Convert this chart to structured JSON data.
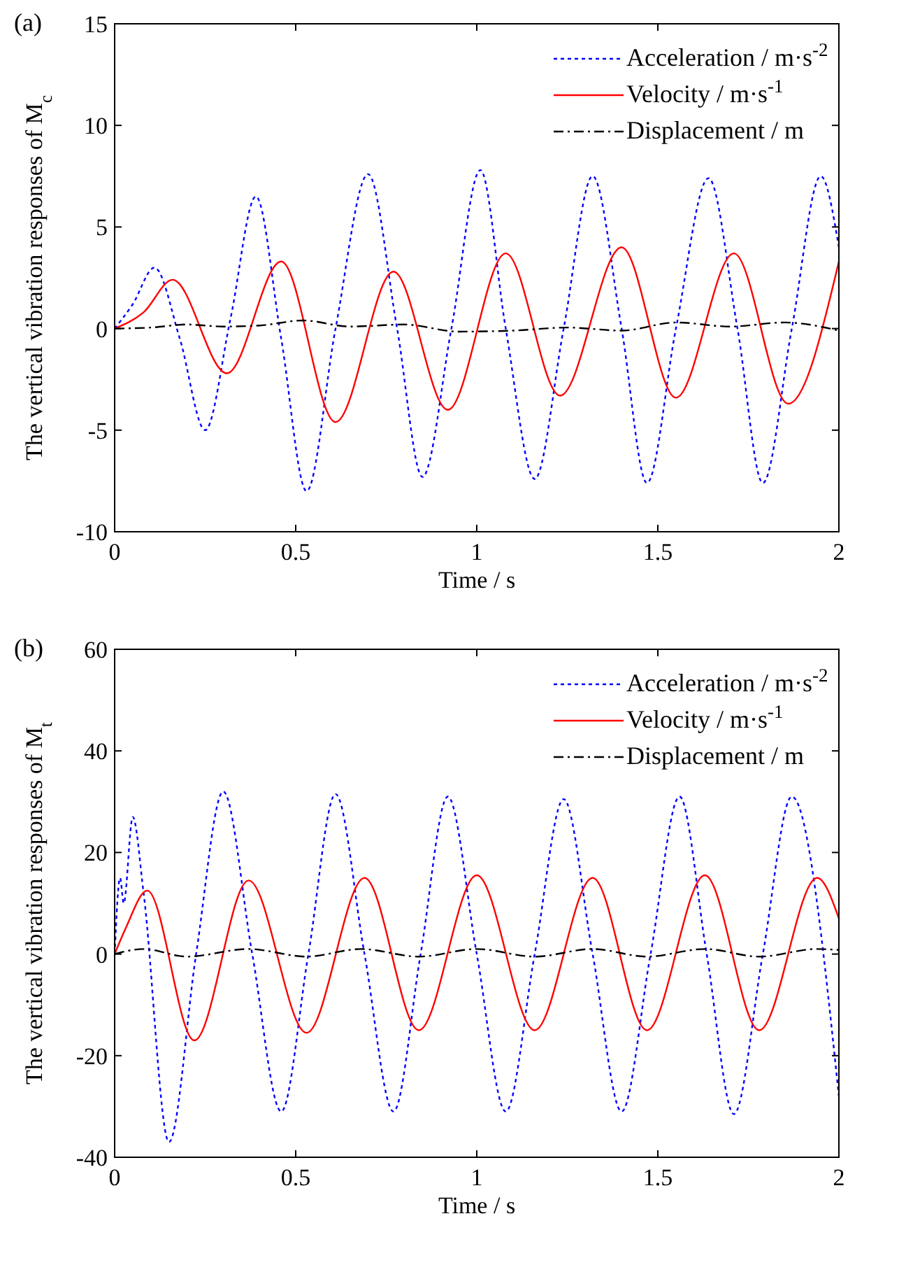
{
  "chart_data": [
    {
      "type": "line",
      "title": "(a)",
      "xlabel": "Time / s",
      "ylabel": "The vertical vibration responses of M$_{c}$",
      "xlim": [
        0,
        2
      ],
      "ylim": [
        -10,
        15
      ],
      "xticks": [
        0,
        0.5,
        1,
        1.5,
        2
      ],
      "yticks": [
        -10,
        -5,
        0,
        5,
        10,
        15
      ],
      "legend": "top right",
      "grid": false,
      "series": [
        {
          "name": "Acceleration / m·s$^{-2}$",
          "color": "#0000ff",
          "line_style": "dotted",
          "x": [
            0,
            0.05,
            0.11,
            0.18,
            0.25,
            0.32,
            0.39,
            0.46,
            0.53,
            0.61,
            0.7,
            0.78,
            0.85,
            0.93,
            1.01,
            1.08,
            1.16,
            1.24,
            1.32,
            1.4,
            1.47,
            1.55,
            1.64,
            1.72,
            1.79,
            1.87,
            1.95,
            2.0
          ],
          "values": [
            0,
            1.2,
            3,
            -0.5,
            -5,
            0.5,
            6.5,
            -0.5,
            -8,
            0,
            7.6,
            0,
            -7.3,
            0,
            7.8,
            0,
            -7.4,
            0,
            7.5,
            0,
            -7.6,
            0,
            7.4,
            0,
            -7.6,
            0,
            7.5,
            4
          ]
        },
        {
          "name": "Velocity / m·s$^{-1}$",
          "color": "#ff0000",
          "line_style": "solid",
          "x": [
            0,
            0.08,
            0.16,
            0.31,
            0.46,
            0.61,
            0.77,
            0.92,
            1.08,
            1.23,
            1.4,
            1.55,
            1.71,
            1.86,
            2.0
          ],
          "values": [
            0,
            0.8,
            2.4,
            -2.2,
            3.3,
            -4.6,
            2.8,
            -4.0,
            3.7,
            -3.3,
            4.0,
            -3.4,
            3.7,
            -3.7,
            3.3
          ]
        },
        {
          "name": "Displacement / m",
          "color": "#000000",
          "line_style": "dashed",
          "x": [
            0,
            0.1,
            0.2,
            0.3,
            0.4,
            0.52,
            0.65,
            0.8,
            0.95,
            1.1,
            1.25,
            1.4,
            1.55,
            1.7,
            1.85,
            2.0
          ],
          "values": [
            0,
            0.05,
            0.2,
            0.1,
            0.15,
            0.4,
            0.1,
            0.2,
            -0.15,
            -0.1,
            0.05,
            -0.1,
            0.3,
            0.1,
            0.3,
            -0.1
          ]
        }
      ]
    },
    {
      "type": "line",
      "title": "(b)",
      "xlabel": "Time / s",
      "ylabel": "The vertical vibration responses of M$_{t}$",
      "xlim": [
        0,
        2
      ],
      "ylim": [
        -40,
        60
      ],
      "xticks": [
        0,
        0.5,
        1,
        1.5,
        2
      ],
      "yticks": [
        -40,
        -20,
        0,
        20,
        40,
        60
      ],
      "legend": "top right",
      "grid": false,
      "series": [
        {
          "name": "Acceleration / m·s$^{-2}$",
          "color": "#0000ff",
          "line_style": "dotted",
          "x": [
            0,
            0.015,
            0.025,
            0.05,
            0.08,
            0.15,
            0.225,
            0.3,
            0.38,
            0.46,
            0.535,
            0.61,
            0.69,
            0.77,
            0.845,
            0.92,
            1.0,
            1.08,
            1.16,
            1.24,
            1.32,
            1.4,
            1.48,
            1.56,
            1.635,
            1.71,
            1.79,
            1.87,
            2.0
          ],
          "values": [
            0,
            15,
            10,
            27,
            12,
            -37,
            0,
            32,
            0,
            -31,
            0,
            31.5,
            0,
            -31,
            0,
            31,
            0,
            -31,
            0,
            30.5,
            0,
            -31,
            0,
            31,
            0,
            -31.5,
            0,
            31,
            -28
          ]
        },
        {
          "name": "Velocity / m·s$^{-1}$",
          "color": "#ff0000",
          "line_style": "solid",
          "x": [
            0,
            0.03,
            0.09,
            0.22,
            0.37,
            0.53,
            0.69,
            0.84,
            1.0,
            1.16,
            1.32,
            1.47,
            1.63,
            1.78,
            1.94,
            2.0
          ],
          "values": [
            0,
            5,
            12.5,
            -17,
            14.5,
            -15.5,
            15,
            -15,
            15.5,
            -15,
            15,
            -15,
            15.5,
            -15,
            15,
            7
          ]
        },
        {
          "name": "Displacement / m",
          "color": "#000000",
          "line_style": "dashed",
          "x": [
            0,
            0.08,
            0.2,
            0.37,
            0.53,
            0.68,
            0.84,
            1.0,
            1.16,
            1.32,
            1.47,
            1.63,
            1.78,
            1.94,
            2.0
          ],
          "values": [
            0,
            1,
            -0.5,
            1,
            -0.5,
            1,
            -0.5,
            1,
            -0.5,
            1,
            -0.5,
            1,
            -0.5,
            1,
            0.8
          ]
        }
      ]
    }
  ]
}
